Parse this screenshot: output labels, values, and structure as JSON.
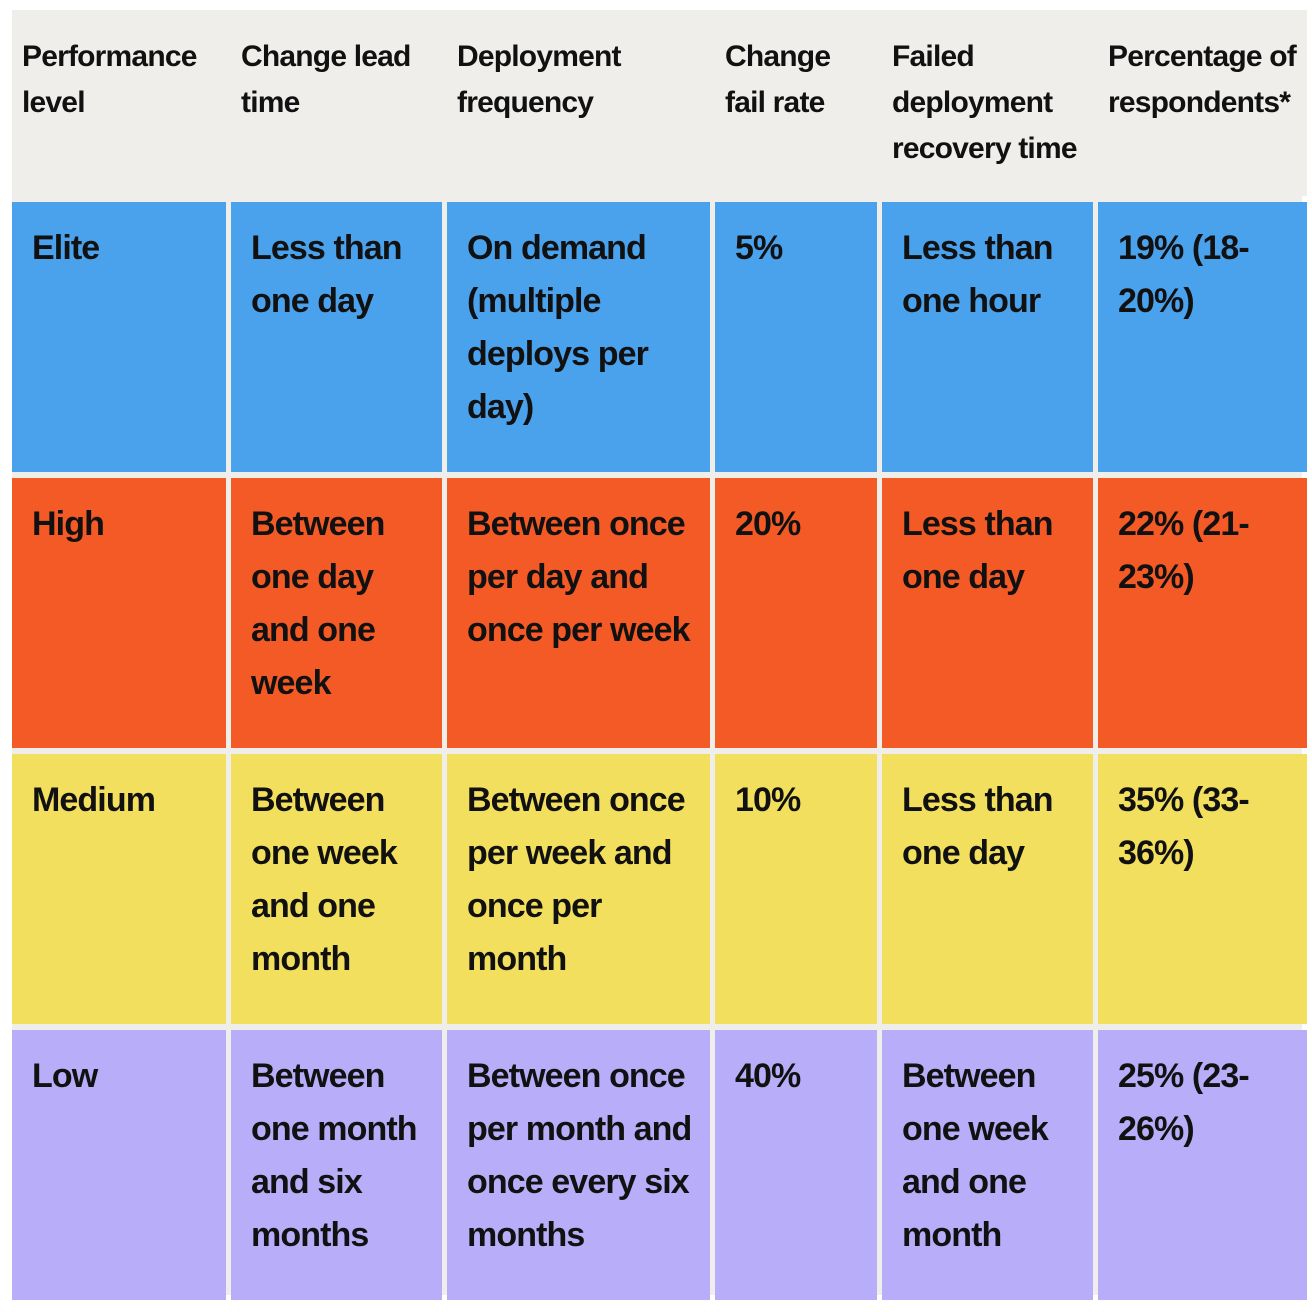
{
  "table": {
    "headers": [
      "Performance level",
      "Change lead time",
      "Deployment frequency",
      "Change fail rate",
      "Failed deployment recovery time",
      "Percentage of respondents*"
    ],
    "rows": [
      {
        "level": "Elite",
        "lead_time": "Less than one day",
        "deploy_frequency": "On demand (multiple deploys per day)",
        "fail_rate": "5%",
        "recovery_time": "Less than one hour",
        "percentage": "19% (18-20%)",
        "color": "#4aa1ec"
      },
      {
        "level": "High",
        "lead_time": "Between one day and one week",
        "deploy_frequency": "Between once per day and once per week",
        "fail_rate": "20%",
        "recovery_time": "Less than one day",
        "percentage": "22% (21-23%)",
        "color": "#f45a26"
      },
      {
        "level": "Medium",
        "lead_time": "Between one week and one month",
        "deploy_frequency": "Between once per week and once per month",
        "fail_rate": "10%",
        "recovery_time": "Less than one day",
        "percentage": "35% (33-36%)",
        "color": "#f2df5e"
      },
      {
        "level": "Low",
        "lead_time": "Between one month and six months",
        "deploy_frequency": "Between once per month and once every six months",
        "fail_rate": "40%",
        "recovery_time": "Between one week and one month",
        "percentage": "25% (23-26%)",
        "color": "#b7adf8"
      }
    ]
  }
}
